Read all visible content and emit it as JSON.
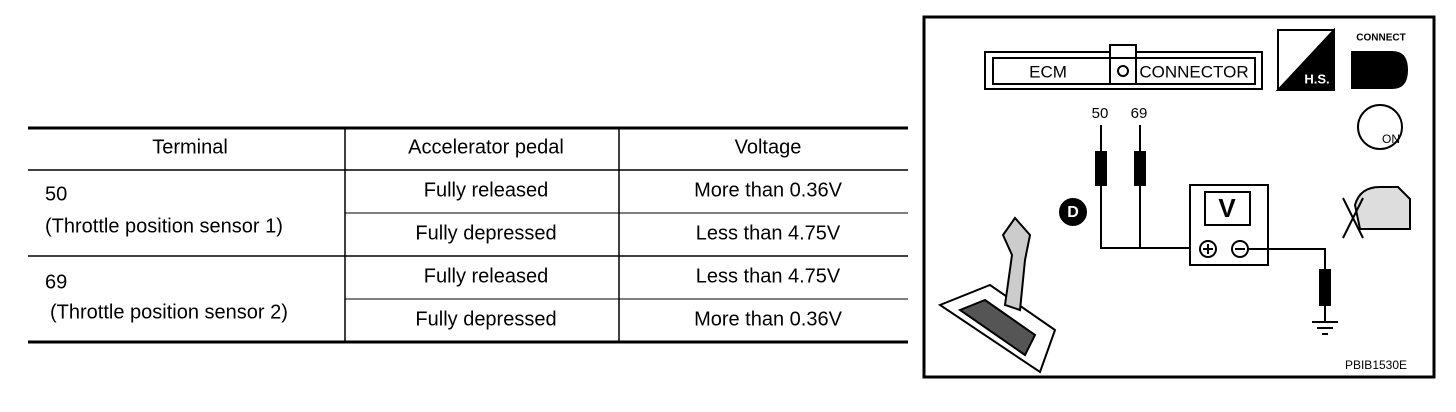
{
  "table": {
    "header": [
      "Terminal",
      "Accelerator pedal",
      "Voltage"
    ],
    "rows": [
      {
        "terminal": [
          "50",
          "(Throttle position sensor 1)"
        ],
        "conditions": [
          [
            "Fully released",
            "More than 0.36V"
          ],
          [
            "Fully depressed",
            "Less than 4.75V"
          ]
        ]
      },
      {
        "terminal": [
          "69",
          "(Throttle position sensor 2)"
        ],
        "conditions": [
          [
            "Fully released",
            "Less than 4.75V"
          ],
          [
            "Fully depressed",
            "More than 0.36V"
          ]
        ]
      }
    ]
  },
  "diagram": {
    "connector": [
      "ECM",
      "CONNECTOR"
    ],
    "terminals": [
      "50",
      "69"
    ],
    "meter": "V",
    "range": "D",
    "icons": [
      "H.S.",
      "CONNECT",
      "ON"
    ],
    "code": "PBIB1530E"
  }
}
